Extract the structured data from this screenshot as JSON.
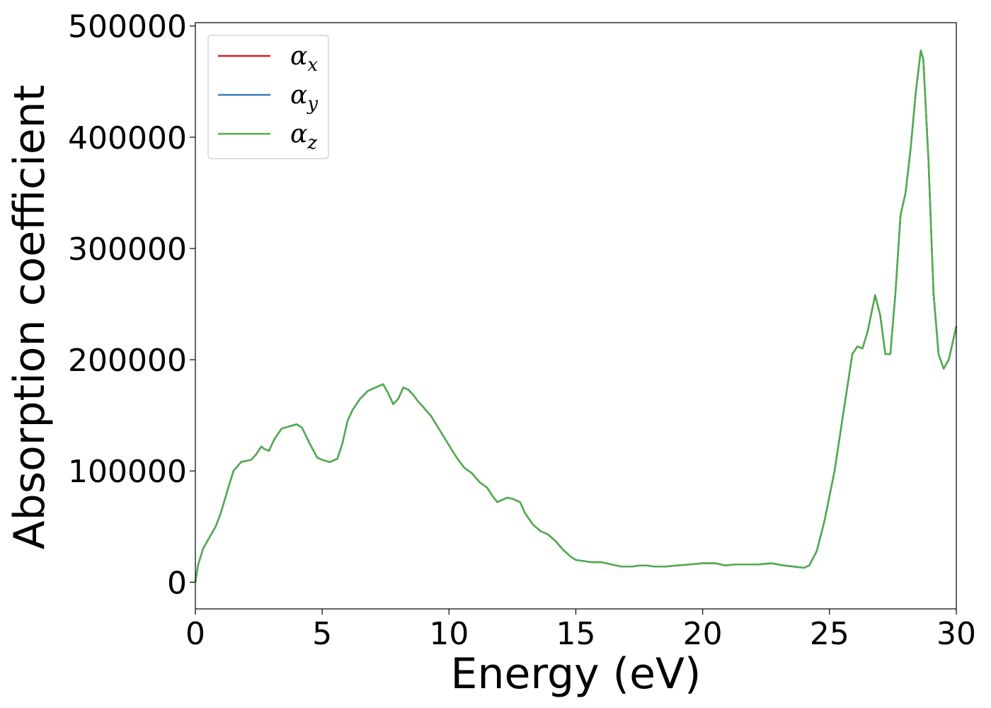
{
  "chart_data": {
    "type": "line",
    "xlabel": "Energy (eV)",
    "ylabel": "Absorption coefficient",
    "xlim": [
      0,
      30
    ],
    "ylim": [
      -24000,
      503000
    ],
    "xticks": [
      0,
      5,
      10,
      15,
      20,
      25,
      30
    ],
    "xtick_labels": [
      "0",
      "5",
      "10",
      "15",
      "20",
      "25",
      "30"
    ],
    "yticks": [
      0,
      100000,
      200000,
      300000,
      400000,
      500000
    ],
    "ytick_labels": [
      "0",
      "100000",
      "200000",
      "300000",
      "400000",
      "500000"
    ],
    "grid": false,
    "legend_position": "top-left",
    "x": [
      0,
      0.1,
      0.3,
      0.5,
      0.8,
      1.0,
      1.3,
      1.5,
      1.8,
      2.0,
      2.2,
      2.4,
      2.6,
      2.7,
      2.9,
      3.1,
      3.4,
      3.7,
      4.0,
      4.2,
      4.5,
      4.8,
      5.0,
      5.3,
      5.6,
      5.8,
      6.0,
      6.2,
      6.5,
      6.8,
      7.0,
      7.2,
      7.4,
      7.6,
      7.8,
      8.0,
      8.2,
      8.4,
      8.6,
      8.8,
      9.0,
      9.3,
      9.6,
      10.0,
      10.3,
      10.6,
      10.9,
      11.2,
      11.5,
      11.7,
      11.9,
      12.1,
      12.3,
      12.5,
      12.8,
      13.0,
      13.3,
      13.6,
      13.9,
      14.2,
      14.5,
      14.8,
      15.0,
      15.3,
      15.6,
      16.0,
      16.4,
      16.8,
      17.2,
      17.5,
      17.8,
      18.1,
      18.5,
      19.0,
      19.5,
      20.0,
      20.5,
      20.9,
      21.3,
      21.7,
      22.2,
      22.7,
      23.2,
      23.6,
      24.0,
      24.2,
      24.5,
      24.8,
      25.2,
      25.6,
      25.9,
      26.1,
      26.3,
      26.5,
      26.8,
      27.0,
      27.2,
      27.4,
      27.6,
      27.8,
      28.0,
      28.2,
      28.4,
      28.6,
      28.7,
      28.9,
      29.1,
      29.3,
      29.5,
      29.7,
      30.0
    ],
    "series": [
      {
        "name": "αx",
        "color": "#e41a1c",
        "values": [
          0,
          15000,
          30000,
          38000,
          50000,
          62000,
          85000,
          100000,
          108000,
          109000,
          110000,
          115000,
          122000,
          120000,
          118000,
          128000,
          138000,
          140000,
          142000,
          139000,
          125000,
          112000,
          110000,
          108000,
          111000,
          125000,
          145000,
          155000,
          165000,
          172000,
          174000,
          176000,
          178000,
          170000,
          160000,
          165000,
          175000,
          173000,
          168000,
          162000,
          157000,
          149000,
          138000,
          123000,
          112000,
          103000,
          98000,
          90000,
          85000,
          78000,
          72000,
          74000,
          76000,
          75000,
          72000,
          62000,
          52000,
          46000,
          43000,
          37000,
          29000,
          23000,
          20000,
          19000,
          18000,
          18000,
          16000,
          14000,
          14000,
          15000,
          15000,
          14000,
          14000,
          15000,
          16000,
          17000,
          17000,
          15000,
          16000,
          16000,
          16000,
          17000,
          15000,
          14000,
          13000,
          15000,
          28000,
          55000,
          100000,
          160000,
          205000,
          212000,
          210000,
          225000,
          258000,
          240000,
          205000,
          205000,
          260000,
          330000,
          350000,
          390000,
          440000,
          478000,
          470000,
          380000,
          260000,
          205000,
          192000,
          200000,
          230000
        ]
      },
      {
        "name": "αy",
        "color": "#377eb8",
        "values": [
          0,
          15000,
          30000,
          38000,
          50000,
          62000,
          85000,
          100000,
          108000,
          109000,
          110000,
          115000,
          122000,
          120000,
          118000,
          128000,
          138000,
          140000,
          142000,
          139000,
          125000,
          112000,
          110000,
          108000,
          111000,
          125000,
          145000,
          155000,
          165000,
          172000,
          174000,
          176000,
          178000,
          170000,
          160000,
          165000,
          175000,
          173000,
          168000,
          162000,
          157000,
          149000,
          138000,
          123000,
          112000,
          103000,
          98000,
          90000,
          85000,
          78000,
          72000,
          74000,
          76000,
          75000,
          72000,
          62000,
          52000,
          46000,
          43000,
          37000,
          29000,
          23000,
          20000,
          19000,
          18000,
          18000,
          16000,
          14000,
          14000,
          15000,
          15000,
          14000,
          14000,
          15000,
          16000,
          17000,
          17000,
          15000,
          16000,
          16000,
          16000,
          17000,
          15000,
          14000,
          13000,
          15000,
          28000,
          55000,
          100000,
          160000,
          205000,
          212000,
          210000,
          225000,
          258000,
          240000,
          205000,
          205000,
          260000,
          330000,
          350000,
          390000,
          440000,
          478000,
          470000,
          380000,
          260000,
          205000,
          192000,
          200000,
          230000
        ]
      },
      {
        "name": "αz",
        "color": "#4daf4a",
        "values": [
          0,
          15000,
          30000,
          38000,
          50000,
          62000,
          85000,
          100000,
          108000,
          109000,
          110000,
          115000,
          122000,
          120000,
          118000,
          128000,
          138000,
          140000,
          142000,
          139000,
          125000,
          112000,
          110000,
          108000,
          111000,
          125000,
          145000,
          155000,
          165000,
          172000,
          174000,
          176000,
          178000,
          170000,
          160000,
          165000,
          175000,
          173000,
          168000,
          162000,
          157000,
          149000,
          138000,
          123000,
          112000,
          103000,
          98000,
          90000,
          85000,
          78000,
          72000,
          74000,
          76000,
          75000,
          72000,
          62000,
          52000,
          46000,
          43000,
          37000,
          29000,
          23000,
          20000,
          19000,
          18000,
          18000,
          16000,
          14000,
          14000,
          15000,
          15000,
          14000,
          14000,
          15000,
          16000,
          17000,
          17000,
          15000,
          16000,
          16000,
          16000,
          17000,
          15000,
          14000,
          13000,
          15000,
          28000,
          55000,
          100000,
          160000,
          205000,
          212000,
          210000,
          225000,
          258000,
          240000,
          205000,
          205000,
          260000,
          330000,
          350000,
          390000,
          440000,
          478000,
          470000,
          380000,
          260000,
          205000,
          192000,
          200000,
          230000
        ]
      }
    ],
    "legend": [
      {
        "symbol": "α",
        "subscript": "x"
      },
      {
        "symbol": "α",
        "subscript": "y"
      },
      {
        "symbol": "α",
        "subscript": "z"
      }
    ]
  }
}
